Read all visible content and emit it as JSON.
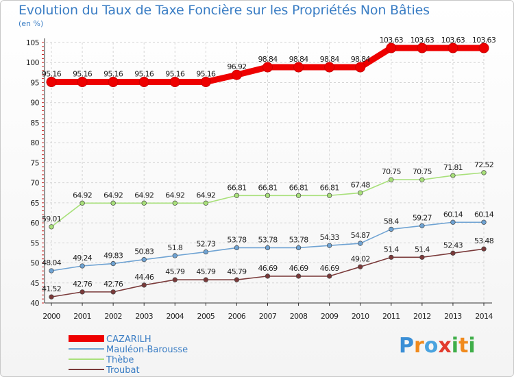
{
  "chart_data": {
    "type": "line",
    "title": "Evolution du Taux de Taxe Foncière sur les Propriétés Non Bâties",
    "ylabel": "(en %)",
    "x": [
      "2000",
      "2001",
      "2002",
      "2003",
      "2004",
      "2005",
      "2006",
      "2007",
      "2008",
      "2009",
      "2010",
      "2011",
      "2012",
      "2013",
      "2014"
    ],
    "ylim": [
      40,
      105
    ],
    "yticks": [
      40,
      45,
      50,
      55,
      60,
      65,
      70,
      75,
      80,
      85,
      90,
      95,
      100,
      105
    ],
    "grid": true,
    "legend_position": "bottom-left",
    "series": [
      {
        "name": "CAZARILH",
        "color": "#ee0000",
        "values": [
          95.16,
          95.16,
          95.16,
          95.16,
          95.16,
          95.16,
          96.92,
          98.84,
          98.84,
          98.84,
          98.84,
          103.63,
          103.63,
          103.63,
          103.63
        ],
        "labels": [
          "95.16",
          "95.16",
          "95.16",
          "95.16",
          "95.16",
          "95.16",
          "96.92",
          "98.84",
          "98.84",
          "98.84",
          "98.84",
          "103.63",
          "103.63",
          "103.63",
          "103.63"
        ]
      },
      {
        "name": "Mauléon-Barousse",
        "color": "#6fa3d3",
        "values": [
          48.04,
          49.24,
          49.83,
          50.83,
          51.8,
          52.73,
          53.78,
          53.78,
          53.78,
          54.33,
          54.87,
          58.4,
          59.27,
          60.14,
          60.14
        ],
        "labels": [
          "48.04",
          "49.24",
          "49.83",
          "50.83",
          "51.8",
          "52.73",
          "53.78",
          "53.78",
          "53.78",
          "54.33",
          "54.87",
          "58.4",
          "59.27",
          "60.14",
          "60.14"
        ]
      },
      {
        "name": "Thèbe",
        "color": "#a8e07a",
        "values": [
          59.01,
          64.92,
          64.92,
          64.92,
          64.92,
          64.92,
          66.81,
          66.81,
          66.81,
          66.81,
          67.48,
          70.75,
          70.75,
          71.81,
          72.52
        ],
        "labels": [
          "59.01",
          "64.92",
          "64.92",
          "64.92",
          "64.92",
          "64.92",
          "66.81",
          "66.81",
          "66.81",
          "66.81",
          "67.48",
          "70.75",
          "70.75",
          "71.81",
          "72.52"
        ]
      },
      {
        "name": "Troubat",
        "color": "#7a3a3a",
        "values": [
          41.52,
          42.76,
          42.76,
          44.46,
          45.79,
          45.79,
          45.79,
          46.69,
          46.69,
          46.69,
          49.02,
          51.4,
          51.4,
          52.43,
          53.48
        ],
        "labels": [
          "41.52",
          "42.76",
          "42.76",
          "44.46",
          "45.79",
          "45.79",
          "45.79",
          "46.69",
          "46.69",
          "46.69",
          "49.02",
          "51.4",
          "51.4",
          "52.43",
          "53.48"
        ]
      }
    ]
  },
  "logo": {
    "text": "Proxiti",
    "letter_colors": [
      "#3b8fd6",
      "#f08a1d",
      "#4aa3df",
      "#e23b2e",
      "#3fae49",
      "#f08a1d",
      "#3fae49"
    ]
  }
}
